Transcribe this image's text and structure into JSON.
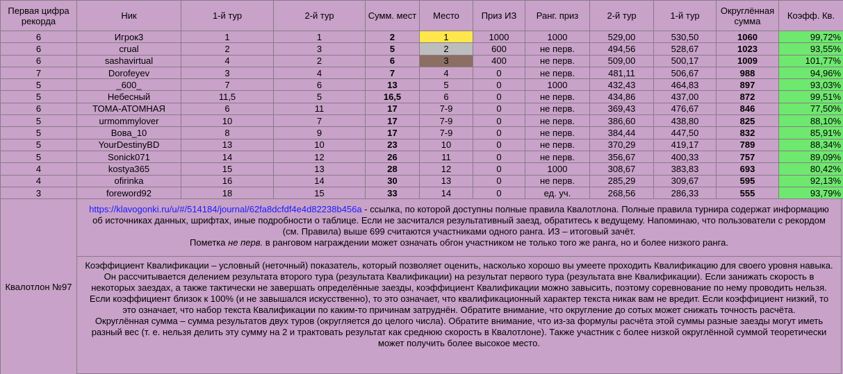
{
  "table": {
    "header": [
      "Первая цифра рекорда",
      "Ник",
      "1-й тур",
      "2-й тур",
      "Сумм. мест",
      "Место",
      "Приз ИЗ",
      "Ранг. приз",
      "2-й тур",
      "1-й тур",
      "Округлённая сумма",
      "Коэфф. Кв."
    ],
    "rows": [
      [
        "6",
        "Игрок3",
        "1",
        "1",
        "2",
        "1",
        "1000",
        "1000",
        "529,00",
        "530,50",
        "1060",
        "99,72%"
      ],
      [
        "6",
        "crual",
        "2",
        "3",
        "5",
        "2",
        "600",
        "не перв.",
        "494,56",
        "528,67",
        "1023",
        "93,55%"
      ],
      [
        "6",
        "sashavirtual",
        "4",
        "2",
        "6",
        "3",
        "400",
        "не перв.",
        "509,00",
        "500,17",
        "1009",
        "101,77%"
      ],
      [
        "7",
        "Dorofeyev",
        "3",
        "4",
        "7",
        "4",
        "0",
        "не перв.",
        "481,11",
        "506,67",
        "988",
        "94,96%"
      ],
      [
        "5",
        "_600_",
        "7",
        "6",
        "13",
        "5",
        "0",
        "1000",
        "432,43",
        "464,83",
        "897",
        "93,03%"
      ],
      [
        "5",
        "Небесный",
        "11,5",
        "5",
        "16,5",
        "6",
        "0",
        "не перв.",
        "434,86",
        "437,00",
        "872",
        "99,51%"
      ],
      [
        "6",
        "ТОМА-АТОМНАЯ",
        "6",
        "11",
        "17",
        "7-9",
        "0",
        "не перв.",
        "369,43",
        "476,67",
        "846",
        "77,50%"
      ],
      [
        "5",
        "urmommylover",
        "10",
        "7",
        "17",
        "7-9",
        "0",
        "не перв.",
        "386,60",
        "438,80",
        "825",
        "88,10%"
      ],
      [
        "5",
        "Вова_10",
        "8",
        "9",
        "17",
        "7-9",
        "0",
        "не перв.",
        "384,44",
        "447,50",
        "832",
        "85,91%"
      ],
      [
        "5",
        "YourDestinyBD",
        "13",
        "10",
        "23",
        "10",
        "0",
        "не перв.",
        "370,29",
        "419,17",
        "789",
        "88,34%"
      ],
      [
        "5",
        "Sonick071",
        "14",
        "12",
        "26",
        "11",
        "0",
        "не перв.",
        "356,67",
        "400,33",
        "757",
        "89,09%"
      ],
      [
        "4",
        "kostya365",
        "15",
        "13",
        "28",
        "12",
        "0",
        "1000",
        "308,67",
        "383,83",
        "693",
        "80,42%"
      ],
      [
        "4",
        "ofirinka",
        "16",
        "14",
        "30",
        "13",
        "0",
        "не перв.",
        "285,29",
        "309,67",
        "595",
        "92,13%"
      ],
      [
        "3",
        "foreword92",
        "18",
        "15",
        "33",
        "14",
        "0",
        "ед. уч.",
        "268,56",
        "286,33",
        "555",
        "93,79%"
      ]
    ]
  },
  "side_label": "Квалотлон №97",
  "notes": [
    [
      {
        "link": "https://klavogonki.ru/u/#/514184/journal/62fa8dcfdf4e4d82238b456a",
        "text": " - ссылка, по которой доступны полные правила Квалотлона. Полные правила турнира содержат информацию об источниках данных, шрифтах, иные подробности о таблице. Если не засчитался результативный заезд, обратитесь к ведущему. Напоминаю, что пользователи с рекордом (см. Правила) выше 699 считаются участниками одного ранга. ИЗ – итоговый зачёт."
      },
      {
        "before": "Пометка ",
        "italic": "не перв.",
        "after": " в ранговом награждении может означать обгон участником не только того же ранга, но и более низкого ранга."
      }
    ],
    [
      {
        "text": "Коэффициент Квалификации – условный (неточный) показатель, который позволяет оценить, насколько хорошо вы умеете проходить Квалификацию для своего уровня навыка. Он рассчитывается делением результата второго тура (результата Квалификации) на результат первого тура (результата вне Квалификации). Если занижать скорость в некоторых заездах, а также тактически не завершать определённые заезды, коэффициент Квалификации можно завысить, поэтому соревнование по нему проводить нельзя."
      },
      {
        "text": "Если коэффициент близок к 100% (и не завышался искусственно), то это означает, что квалификационный характер текста никак вам не вредит. Если коэффициент низкий, то это означает, что набор текста Квалификации по каким-то причинам затруднён. Обратите внимание, что округление до сотых может снижать точность расчёта."
      },
      {
        "text": "Округлённая сумма – сумма результатов двух туров (округляется до целого числа). Обратите внимание, что из-за формулы расчёта этой суммы разные заезды могут иметь разный вес (т. е. нельзя делить эту сумму на 2 и трактовать результат как среднюю скорость в Квалотлоне). Также участник с более низкой округлённой суммой теоретически может получить более высокое место."
      }
    ]
  ]
}
